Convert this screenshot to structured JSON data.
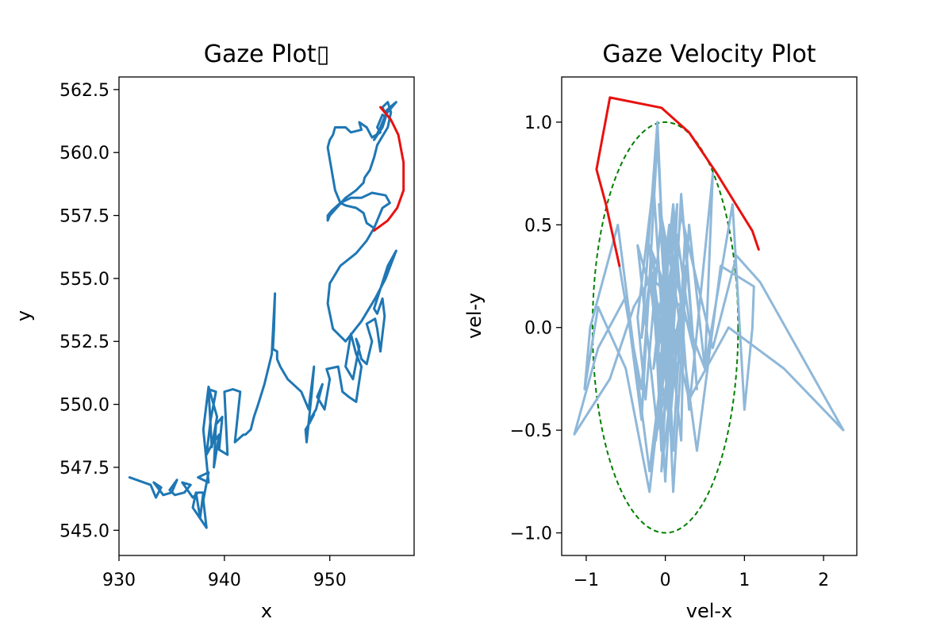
{
  "chart_data": [
    {
      "type": "line",
      "title": "Gaze Plot▯",
      "xlabel": "x",
      "ylabel": "y",
      "xlim": [
        930,
        958
      ],
      "ylim": [
        544.0,
        563.0
      ],
      "xticks": [
        930,
        940,
        950
      ],
      "yticks": [
        545.0,
        547.5,
        550.0,
        552.5,
        555.0,
        557.5,
        560.0,
        562.5
      ],
      "xtick_labels": [
        "930",
        "940",
        "950"
      ],
      "ytick_labels": [
        "545.0",
        "547.5",
        "550.0",
        "552.5",
        "555.0",
        "557.5",
        "560.0",
        "562.5"
      ],
      "series": [
        {
          "color": "#1f77b4",
          "x": [
            931.0,
            933.0,
            933.5,
            934.0,
            933.3,
            934.2,
            935.0,
            935.5,
            934.8,
            935.3,
            936.2,
            936.8,
            936.0,
            937.0,
            937.5,
            938.0,
            937.7,
            937.3,
            937.0,
            938.3,
            938.0,
            938.5,
            937.5,
            938.5,
            938.0,
            938.5,
            939.3,
            938.8,
            938.5,
            939.2,
            938.7,
            938.3,
            938.8,
            939.5,
            939.0,
            939.2,
            939.8,
            939.5,
            940.3,
            940.0,
            940.8,
            941.5,
            941.0,
            941.8,
            942.0,
            942.5,
            942.8,
            943.2,
            943.8,
            944.5,
            944.8,
            944.7,
            944.6,
            945.0,
            945.0,
            945.3,
            946.0,
            947.3,
            948.0,
            948.5,
            948.3,
            947.8,
            947.7,
            948.0,
            948.5,
            948.0,
            948.7,
            949.3,
            948.8,
            949.5,
            950.0,
            949.7,
            950.8,
            951.2,
            951.8,
            952.5,
            953.0,
            952.5,
            952.0,
            951.5,
            952.2,
            952.8,
            952.5,
            953.0,
            953.5,
            954.0,
            953.5,
            954.3,
            954.5,
            954.8,
            955.2,
            955.0,
            954.5,
            954.2,
            955.5,
            956.3,
            956.2,
            955.3,
            954.3,
            953.0,
            951.5,
            950.3,
            949.8,
            950.0,
            951.0,
            952.5,
            953.5,
            954.2
          ],
          "y": [
            547.1,
            546.8,
            546.3,
            546.7,
            546.9,
            546.4,
            546.5,
            547.0,
            546.6,
            546.4,
            546.5,
            546.8,
            546.9,
            546.3,
            546.5,
            546.5,
            545.5,
            546.5,
            545.9,
            545.1,
            546.2,
            547.3,
            547.1,
            546.9,
            549.0,
            550.7,
            549.5,
            548.3,
            550.6,
            550.5,
            549.4,
            548.0,
            548.4,
            548.8,
            547.5,
            549.2,
            549.5,
            548.2,
            548.0,
            550.5,
            550.6,
            550.5,
            548.5,
            548.8,
            548.8,
            549.0,
            549.5,
            550.0,
            550.8,
            552.0,
            554.4,
            553.0,
            552.2,
            552.1,
            551.8,
            551.5,
            551.0,
            550.5,
            549.8,
            551.5,
            550.5,
            548.5,
            549.0,
            549.2,
            549.6,
            549.3,
            549.8,
            550.8,
            550.3,
            549.8,
            551.0,
            551.4,
            551.5,
            550.5,
            550.3,
            550.1,
            551.5,
            552.0,
            552.8,
            551.5,
            551.0,
            552.3,
            552.6,
            551.8,
            551.6,
            552.5,
            553.2,
            553.4,
            553.0,
            552.1,
            553.5,
            554.2,
            553.6,
            553.8,
            555.5,
            556.1,
            556.0,
            555.0,
            554.2,
            553.3,
            552.5,
            553.0,
            554.0,
            554.8,
            555.5,
            556.0,
            556.5,
            557.0
          ]
        },
        {
          "color": "#1f77b4",
          "x": [
            954.2,
            955.0,
            955.7,
            955.3,
            954.0,
            953.0,
            952.0,
            951.0,
            950.2,
            949.8,
            949.8,
            950.0,
            951.5,
            952.5,
            953.2,
            953.3,
            953.8,
            954.2,
            954.5,
            955.5,
            955.8,
            955.5,
            955.0,
            955.2,
            956.0,
            956.3,
            955.3,
            954.8,
            954.2,
            955.0,
            955.3,
            955.0,
            954.5,
            954.8,
            954.0,
            953.5,
            952.8,
            953.0,
            952.0,
            951.5,
            950.5,
            950.3,
            950.0,
            949.8,
            950.5,
            951.0,
            951.5,
            952.5,
            953.2,
            953.5,
            954.2
          ],
          "y": [
            557.0,
            557.8,
            558.0,
            558.3,
            558.4,
            558.2,
            558.2,
            558.0,
            557.7,
            557.5,
            557.3,
            557.5,
            558.2,
            558.5,
            558.8,
            559.0,
            559.3,
            559.8,
            560.3,
            561.0,
            561.6,
            562.0,
            561.8,
            561.6,
            561.9,
            562.0,
            561.5,
            561.0,
            560.5,
            561.0,
            561.4,
            561.5,
            561.0,
            560.8,
            560.6,
            561.0,
            561.2,
            560.9,
            560.8,
            561.0,
            561.0,
            560.7,
            560.5,
            560.2,
            558.5,
            558.0,
            557.9,
            557.8,
            557.6,
            557.2,
            557.0
          ]
        },
        {
          "color": "#e8110f",
          "x": [
            954.2,
            955.5,
            956.4,
            957.0,
            957.0,
            956.5,
            955.8,
            954.8
          ],
          "y": [
            556.9,
            557.3,
            557.8,
            558.5,
            559.6,
            560.7,
            561.3,
            561.8
          ]
        }
      ]
    },
    {
      "type": "line",
      "title": "Gaze Velocity Plot",
      "xlabel": "vel-x",
      "ylabel": "vel-y",
      "xlim": [
        -1.31,
        2.42
      ],
      "ylim": [
        -1.11,
        1.22
      ],
      "xticks": [
        -1,
        0,
        1,
        2
      ],
      "yticks": [
        -1.0,
        -0.5,
        0.0,
        0.5,
        1.0
      ],
      "xtick_labels": [
        "−1",
        "0",
        "1",
        "2"
      ],
      "ytick_labels": [
        "−1.0",
        "−0.5",
        "0.0",
        "0.5",
        "1.0"
      ],
      "ellipse": {
        "cx": 0.0,
        "cy": 0.0,
        "rx": 0.92,
        "ry": 1.0,
        "color": "#007f00",
        "dashed": true
      },
      "series": [
        {
          "color": "#8fb8d9",
          "x": [
            -0.58,
            -0.45,
            -0.3,
            -0.2,
            -0.35,
            -0.1,
            0.2,
            0.5,
            0.85,
            1.0,
            1.1,
            1.12,
            0.7,
            0.4,
            0.1,
            -0.2,
            -0.5,
            -0.85,
            -1.02,
            -0.95,
            -0.6,
            -0.2,
            0.2,
            0.6,
            0.9,
            1.2,
            2.25,
            1.5,
            0.8,
            0.3,
            -0.1,
            -0.4,
            -0.7,
            -1.15,
            -0.85,
            -0.5,
            -0.3,
            -0.1,
            0.1,
            0.25,
            0.4,
            0.2,
            0.0,
            -0.15,
            -0.3,
            -0.1,
            0.1,
            0.3,
            0.5,
            0.6,
            0.3,
            0.1,
            -0.1,
            -0.2,
            0.0,
            0.2,
            0.25,
            0.15,
            -0.05,
            -0.25,
            -0.35,
            -0.15,
            0.05,
            0.2,
            0.35,
            0.15,
            -0.05,
            -0.15,
            0.05,
            0.15,
            0.0,
            -0.1,
            0.05,
            -0.15,
            0.1,
            -0.05,
            0.2,
            -0.2,
            0.0,
            0.1,
            -0.1,
            0.25,
            0.05,
            -0.12,
            0.12,
            -0.08,
            0.08,
            -0.15,
            0.18,
            0.0
          ],
          "y": [
            0.3,
            0.0,
            -0.3,
            0.2,
            0.4,
            -0.5,
            0.1,
            -0.2,
            0.6,
            -0.4,
            0.0,
            0.2,
            0.3,
            -0.6,
            0.25,
            -0.8,
            -0.2,
            0.1,
            -0.3,
            0.0,
            0.5,
            -0.7,
            0.55,
            -0.1,
            0.35,
            0.22,
            -0.5,
            -0.2,
            0.0,
            -0.35,
            0.3,
            0.1,
            -0.25,
            -0.52,
            -0.1,
            0.15,
            -0.45,
            0.92,
            -0.6,
            0.45,
            -0.3,
            0.65,
            -0.75,
            0.35,
            -0.05,
            1.0,
            -0.8,
            0.5,
            -0.2,
            0.75,
            -0.4,
            0.6,
            -0.15,
            0.4,
            0.2,
            -0.55,
            0.3,
            -0.25,
            0.55,
            -0.35,
            0.05,
            0.7,
            -0.5,
            0.15,
            -0.1,
            0.45,
            -0.6,
            0.25,
            -0.3,
            0.6,
            0.0,
            -0.45,
            0.5,
            -0.2,
            0.35,
            -0.7,
            0.1,
            0.25,
            -0.4,
            0.55,
            -0.15,
            0.05,
            0.4,
            -0.55,
            0.2,
            0.6,
            -0.35,
            0.15,
            -0.05,
            0.0
          ]
        },
        {
          "color": "#e8110f",
          "x": [
            -0.58,
            -0.75,
            -0.87,
            -0.7,
            -0.05,
            0.3,
            0.65,
            1.1,
            1.18
          ],
          "y": [
            0.3,
            0.6,
            0.77,
            1.12,
            1.07,
            0.95,
            0.75,
            0.47,
            0.38
          ]
        }
      ]
    }
  ]
}
